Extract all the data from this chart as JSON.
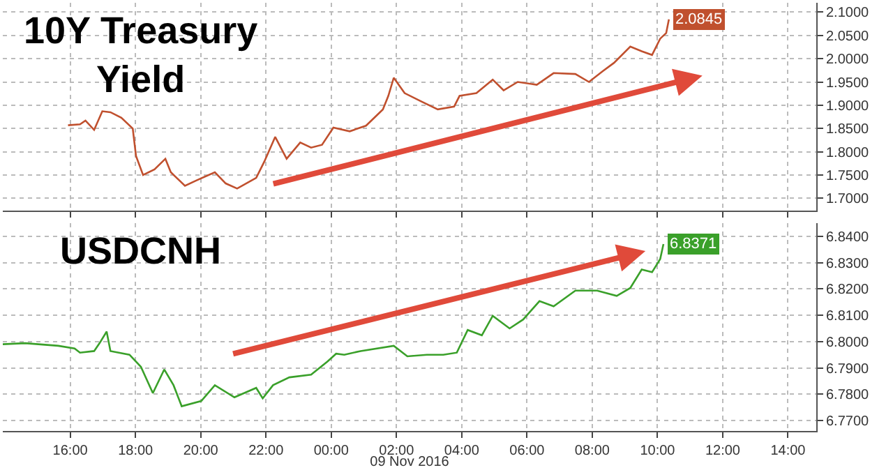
{
  "chart_data": [
    {
      "type": "line",
      "title": "10Y Treasury\nYield",
      "x": [
        "2016-11-08T15:56",
        "2016-11-08T16:18",
        "2016-11-08T16:28",
        "2016-11-08T16:44",
        "2016-11-08T16:59",
        "2016-11-08T17:14",
        "2016-11-08T17:34",
        "2016-11-08T17:55",
        "2016-11-08T18:01",
        "2016-11-08T18:14",
        "2016-11-08T18:35",
        "2016-11-08T18:55",
        "2016-11-08T19:05",
        "2016-11-08T19:31",
        "2016-11-08T19:51",
        "2016-11-08T20:26",
        "2016-11-08T20:46",
        "2016-11-08T21:07",
        "2016-11-08T21:42",
        "2016-11-08T21:57",
        "2016-11-08T22:17",
        "2016-11-08T22:38",
        "2016-11-08T23:03",
        "2016-11-08T23:23",
        "2016-11-08T23:43",
        "2016-11-09T00:04",
        "2016-11-09T00:34",
        "2016-11-09T01:04",
        "2016-11-09T01:35",
        "2016-11-09T01:45",
        "2016-11-09T01:55",
        "2016-11-09T02:15",
        "2016-11-09T02:46",
        "2016-11-09T03:16",
        "2016-11-09T03:46",
        "2016-11-09T03:56",
        "2016-11-09T04:27",
        "2016-11-09T04:57",
        "2016-11-09T05:17",
        "2016-11-09T05:43",
        "2016-11-09T06:18",
        "2016-11-09T06:49",
        "2016-11-09T07:29",
        "2016-11-09T07:54",
        "2016-11-09T08:19",
        "2016-11-09T08:40",
        "2016-11-09T09:10",
        "2016-11-09T09:31",
        "2016-11-09T09:50",
        "2016-11-09T10:05",
        "2016-11-09T10:16",
        "2016-11-09T10:21"
      ],
      "series": [
        {
          "color": "#c0502e",
          "values": [
            1.857,
            1.859,
            1.867,
            1.847,
            1.887,
            1.885,
            1.873,
            1.85,
            1.791,
            1.75,
            1.762,
            1.785,
            1.756,
            1.727,
            1.738,
            1.756,
            1.732,
            1.721,
            1.744,
            1.779,
            1.832,
            1.785,
            1.82,
            1.809,
            1.815,
            1.852,
            1.844,
            1.856,
            1.891,
            1.92,
            1.959,
            1.926,
            1.908,
            1.891,
            1.897,
            1.92,
            1.926,
            1.955,
            1.932,
            1.95,
            1.944,
            1.969,
            1.967,
            1.95,
            1.973,
            1.991,
            2.026,
            2.016,
            2.008,
            2.043,
            2.055,
            2.0845
          ],
          "value_labels": [
            null,
            null,
            null,
            null,
            null,
            null,
            null,
            null,
            null,
            null,
            null,
            null,
            null,
            null,
            null,
            null,
            null,
            null,
            null,
            null,
            null,
            null,
            null,
            null,
            null,
            null,
            null,
            null,
            null,
            null,
            null,
            null,
            null,
            null,
            null,
            null,
            null,
            null,
            null,
            null,
            null,
            null,
            null,
            null,
            null,
            null,
            null,
            null,
            null,
            null,
            null,
            "2.0845"
          ]
        }
      ],
      "xlim": [
        "2016-11-08T13:56",
        "2016-11-09T14:52"
      ],
      "xticks": [
        {
          "value": "2016-11-08T16:00",
          "label": null
        },
        {
          "value": "2016-11-08T18:00",
          "label": null
        },
        {
          "value": "2016-11-08T20:00",
          "label": null
        },
        {
          "value": "2016-11-08T22:00",
          "label": null
        },
        {
          "value": "2016-11-09T00:00",
          "label": null
        },
        {
          "value": "2016-11-09T02:00",
          "label": null
        },
        {
          "value": "2016-11-09T04:00",
          "label": null
        },
        {
          "value": "2016-11-09T06:00",
          "label": null
        },
        {
          "value": "2016-11-09T08:00",
          "label": null
        },
        {
          "value": "2016-11-09T10:00",
          "label": null
        },
        {
          "value": "2016-11-09T12:00",
          "label": null
        },
        {
          "value": "2016-11-09T14:00",
          "label": null
        }
      ],
      "ylim": [
        1.674,
        2.12
      ],
      "yticks": [
        {
          "value": 1.7,
          "label": "1.7000"
        },
        {
          "value": 1.75,
          "label": "1.7500"
        },
        {
          "value": 1.8,
          "label": "1.8000"
        },
        {
          "value": 1.85,
          "label": "1.8500"
        },
        {
          "value": 1.9,
          "label": "1.9000"
        },
        {
          "value": 1.95,
          "label": "1.9500"
        },
        {
          "value": 2.0,
          "label": "2.0000"
        },
        {
          "value": 2.05,
          "label": "2.0500"
        },
        {
          "value": 2.1,
          "label": "2.1000"
        }
      ],
      "tick_labels": "y",
      "grid": true,
      "line_style": "solid"
    },
    {
      "type": "line",
      "title": "USDCNH",
      "xlabel": "09 Nov 2016",
      "x": [
        "2016-11-08T13:56",
        "2016-11-08T14:37",
        "2016-11-08T15:38",
        "2016-11-08T16:08",
        "2016-11-08T16:18",
        "2016-11-08T16:44",
        "2016-11-08T16:54",
        "2016-11-08T17:07",
        "2016-11-08T17:14",
        "2016-11-08T17:49",
        "2016-11-08T18:10",
        "2016-11-08T18:32",
        "2016-11-08T18:53",
        "2016-11-08T19:10",
        "2016-11-08T19:25",
        "2016-11-08T20:01",
        "2016-11-08T20:26",
        "2016-11-08T21:02",
        "2016-11-08T21:42",
        "2016-11-08T21:54",
        "2016-11-08T22:13",
        "2016-11-08T22:43",
        "2016-11-08T23:23",
        "2016-11-08T23:53",
        "2016-11-09T00:09",
        "2016-11-09T00:24",
        "2016-11-09T00:54",
        "2016-11-09T01:55",
        "2016-11-09T02:20",
        "2016-11-09T02:56",
        "2016-11-09T03:26",
        "2016-11-09T03:51",
        "2016-11-09T04:11",
        "2016-11-09T04:37",
        "2016-11-09T04:57",
        "2016-11-09T05:28",
        "2016-11-09T05:53",
        "2016-11-09T06:23",
        "2016-11-09T06:49",
        "2016-11-09T07:29",
        "2016-11-09T08:09",
        "2016-11-09T08:45",
        "2016-11-09T09:10",
        "2016-11-09T09:31",
        "2016-11-09T09:50",
        "2016-11-09T10:05",
        "2016-11-09T10:11"
      ],
      "series": [
        {
          "color": "#3aa02a",
          "values": [
            6.799,
            6.7994,
            6.7984,
            6.7974,
            6.7958,
            6.7964,
            6.7994,
            6.8038,
            6.7964,
            6.795,
            6.7904,
            6.7804,
            6.7894,
            6.7834,
            6.7754,
            6.7774,
            6.7834,
            6.7788,
            6.7824,
            6.7784,
            6.7834,
            6.7864,
            6.7874,
            6.7924,
            6.7954,
            6.795,
            6.7964,
            6.7984,
            6.7944,
            6.795,
            6.795,
            6.7958,
            6.8044,
            6.8024,
            6.8098,
            6.805,
            6.8084,
            6.8154,
            6.8134,
            6.8194,
            6.8194,
            6.8174,
            6.8204,
            6.8274,
            6.8264,
            6.8314,
            6.8371
          ],
          "value_labels": [
            null,
            null,
            null,
            null,
            null,
            null,
            null,
            null,
            null,
            null,
            null,
            null,
            null,
            null,
            null,
            null,
            null,
            null,
            null,
            null,
            null,
            null,
            null,
            null,
            null,
            null,
            null,
            null,
            null,
            null,
            null,
            null,
            null,
            null,
            null,
            null,
            null,
            null,
            null,
            null,
            null,
            null,
            null,
            null,
            null,
            null,
            "6.8371"
          ]
        }
      ],
      "xlim": [
        "2016-11-08T13:56",
        "2016-11-09T14:52"
      ],
      "xticks": [
        {
          "value": "2016-11-08T16:00",
          "label": "16:00"
        },
        {
          "value": "2016-11-08T18:00",
          "label": "18:00"
        },
        {
          "value": "2016-11-08T20:00",
          "label": "20:00"
        },
        {
          "value": "2016-11-08T22:00",
          "label": "22:00"
        },
        {
          "value": "2016-11-09T00:00",
          "label": "00:00"
        },
        {
          "value": "2016-11-09T02:00",
          "label": "02:00"
        },
        {
          "value": "2016-11-09T04:00",
          "label": "04:00"
        },
        {
          "value": "2016-11-09T06:00",
          "label": "06:00"
        },
        {
          "value": "2016-11-09T08:00",
          "label": "08:00"
        },
        {
          "value": "2016-11-09T10:00",
          "label": "10:00"
        },
        {
          "value": "2016-11-09T12:00",
          "label": "12:00"
        },
        {
          "value": "2016-11-09T14:00",
          "label": "14:00"
        }
      ],
      "ylim": [
        6.766,
        6.845
      ],
      "yticks": [
        {
          "value": 6.77,
          "label": "6.7700"
        },
        {
          "value": 6.78,
          "label": "6.7800"
        },
        {
          "value": 6.79,
          "label": "6.7900"
        },
        {
          "value": 6.8,
          "label": "6.8000"
        },
        {
          "value": 6.81,
          "label": "6.8100"
        },
        {
          "value": 6.82,
          "label": "6.8200"
        },
        {
          "value": 6.83,
          "label": "6.8300"
        },
        {
          "value": 6.84,
          "label": "6.8400"
        }
      ],
      "grid": true,
      "line_style": "solid"
    }
  ]
}
